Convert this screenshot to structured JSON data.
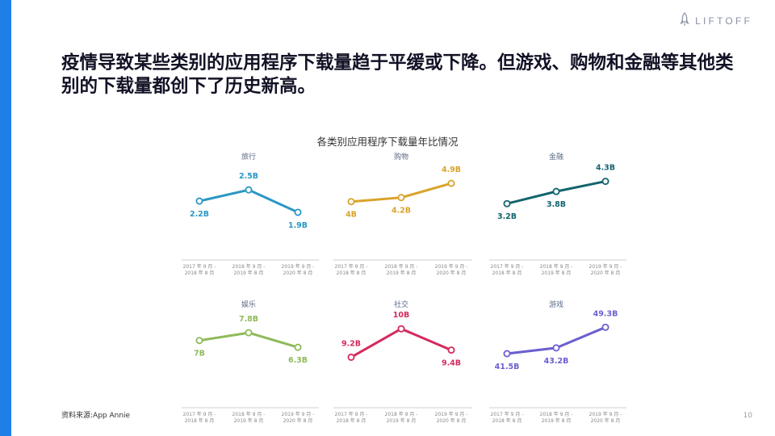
{
  "brand": {
    "logo_text": "LIFTOFF",
    "logo_icon": "rocket-icon",
    "accent_color": "#1f7fe8"
  },
  "headline": "疫情导致某些类别的应用程序下载量趋于平缓或下降。但游戏、购物和金融等其他类别的下载量都创下了历史新高。",
  "chart_title": "各类别应用程序下载量年比情况",
  "source": "资料来源:App Annie",
  "page_number": "10",
  "chart_data": [
    {
      "type": "line",
      "title": "旅行",
      "color": "#2a97c4",
      "x": [
        "2017 年 9 月 - 2018 年 8 月",
        "2018 年 9 月 - 2019 年 8 月",
        "2019 年 9 月 - 2020 年 8 月"
      ],
      "values": [
        2.2,
        2.5,
        1.9
      ],
      "labels": [
        "2.2B",
        "2.5B",
        "1.9B"
      ],
      "ylim": [
        1.1,
        3.0
      ]
    },
    {
      "type": "line",
      "title": "购物",
      "color": "#d9a32a",
      "x": [
        "2017 年 9 月 - 2018 年 8 月",
        "2018 年 9 月 - 2019 年 8 月",
        "2019 年 9 月 - 2020 年 8 月"
      ],
      "values": [
        4,
        4.2,
        4.9
      ],
      "labels": [
        "4B",
        "4.2B",
        "4.9B"
      ],
      "ylim": [
        2.0,
        5.5
      ]
    },
    {
      "type": "line",
      "title": "金融",
      "color": "#13646e",
      "x": [
        "2017 年 9 月 - 2018 年 8 月",
        "2018 年 9 月 - 2019 年 8 月",
        "2019 年 9 月 - 2020 年 8 月"
      ],
      "values": [
        3.2,
        3.8,
        4.3
      ],
      "labels": [
        "3.2B",
        "3.8B",
        "4.3B"
      ],
      "ylim": [
        1.3,
        4.8
      ]
    },
    {
      "type": "line",
      "title": "娱乐",
      "color": "#8fba5a",
      "x": [
        "2017 年 9 月 - 2018 年 8 月",
        "2018 年 9 月 - 2019 年 8 月",
        "2019 年 9 月 - 2020 年 8 月"
      ],
      "values": [
        7,
        7.8,
        6.3
      ],
      "labels": [
        "7B",
        "7.8B",
        "6.3B"
      ],
      "ylim": [
        2.0,
        9.3
      ]
    },
    {
      "type": "line",
      "title": "社交",
      "color": "#d42a5c",
      "x": [
        "2017 年 9 月 - 2018 年 8 月",
        "2018 年 9 月 - 2019 年 8 月",
        "2019 年 9 月 - 2020 年 8 月"
      ],
      "values": [
        9.2,
        10,
        9.4
      ],
      "labels": [
        "9.2B",
        "10B",
        "9.4B"
      ],
      "ylim": [
        8.3,
        10.3
      ]
    },
    {
      "type": "line",
      "title": "游戏",
      "color": "#6a5fcf",
      "x": [
        "2017 年 9 月 - 2018 年 8 月",
        "2018 年 9 月 - 2019 年 8 月",
        "2019 年 9 月 - 2020 年 8 月"
      ],
      "values": [
        41.5,
        43.2,
        49.3
      ],
      "labels": [
        "41.5B",
        "43.2B",
        "49.3B"
      ],
      "ylim": [
        31,
        52
      ]
    }
  ]
}
